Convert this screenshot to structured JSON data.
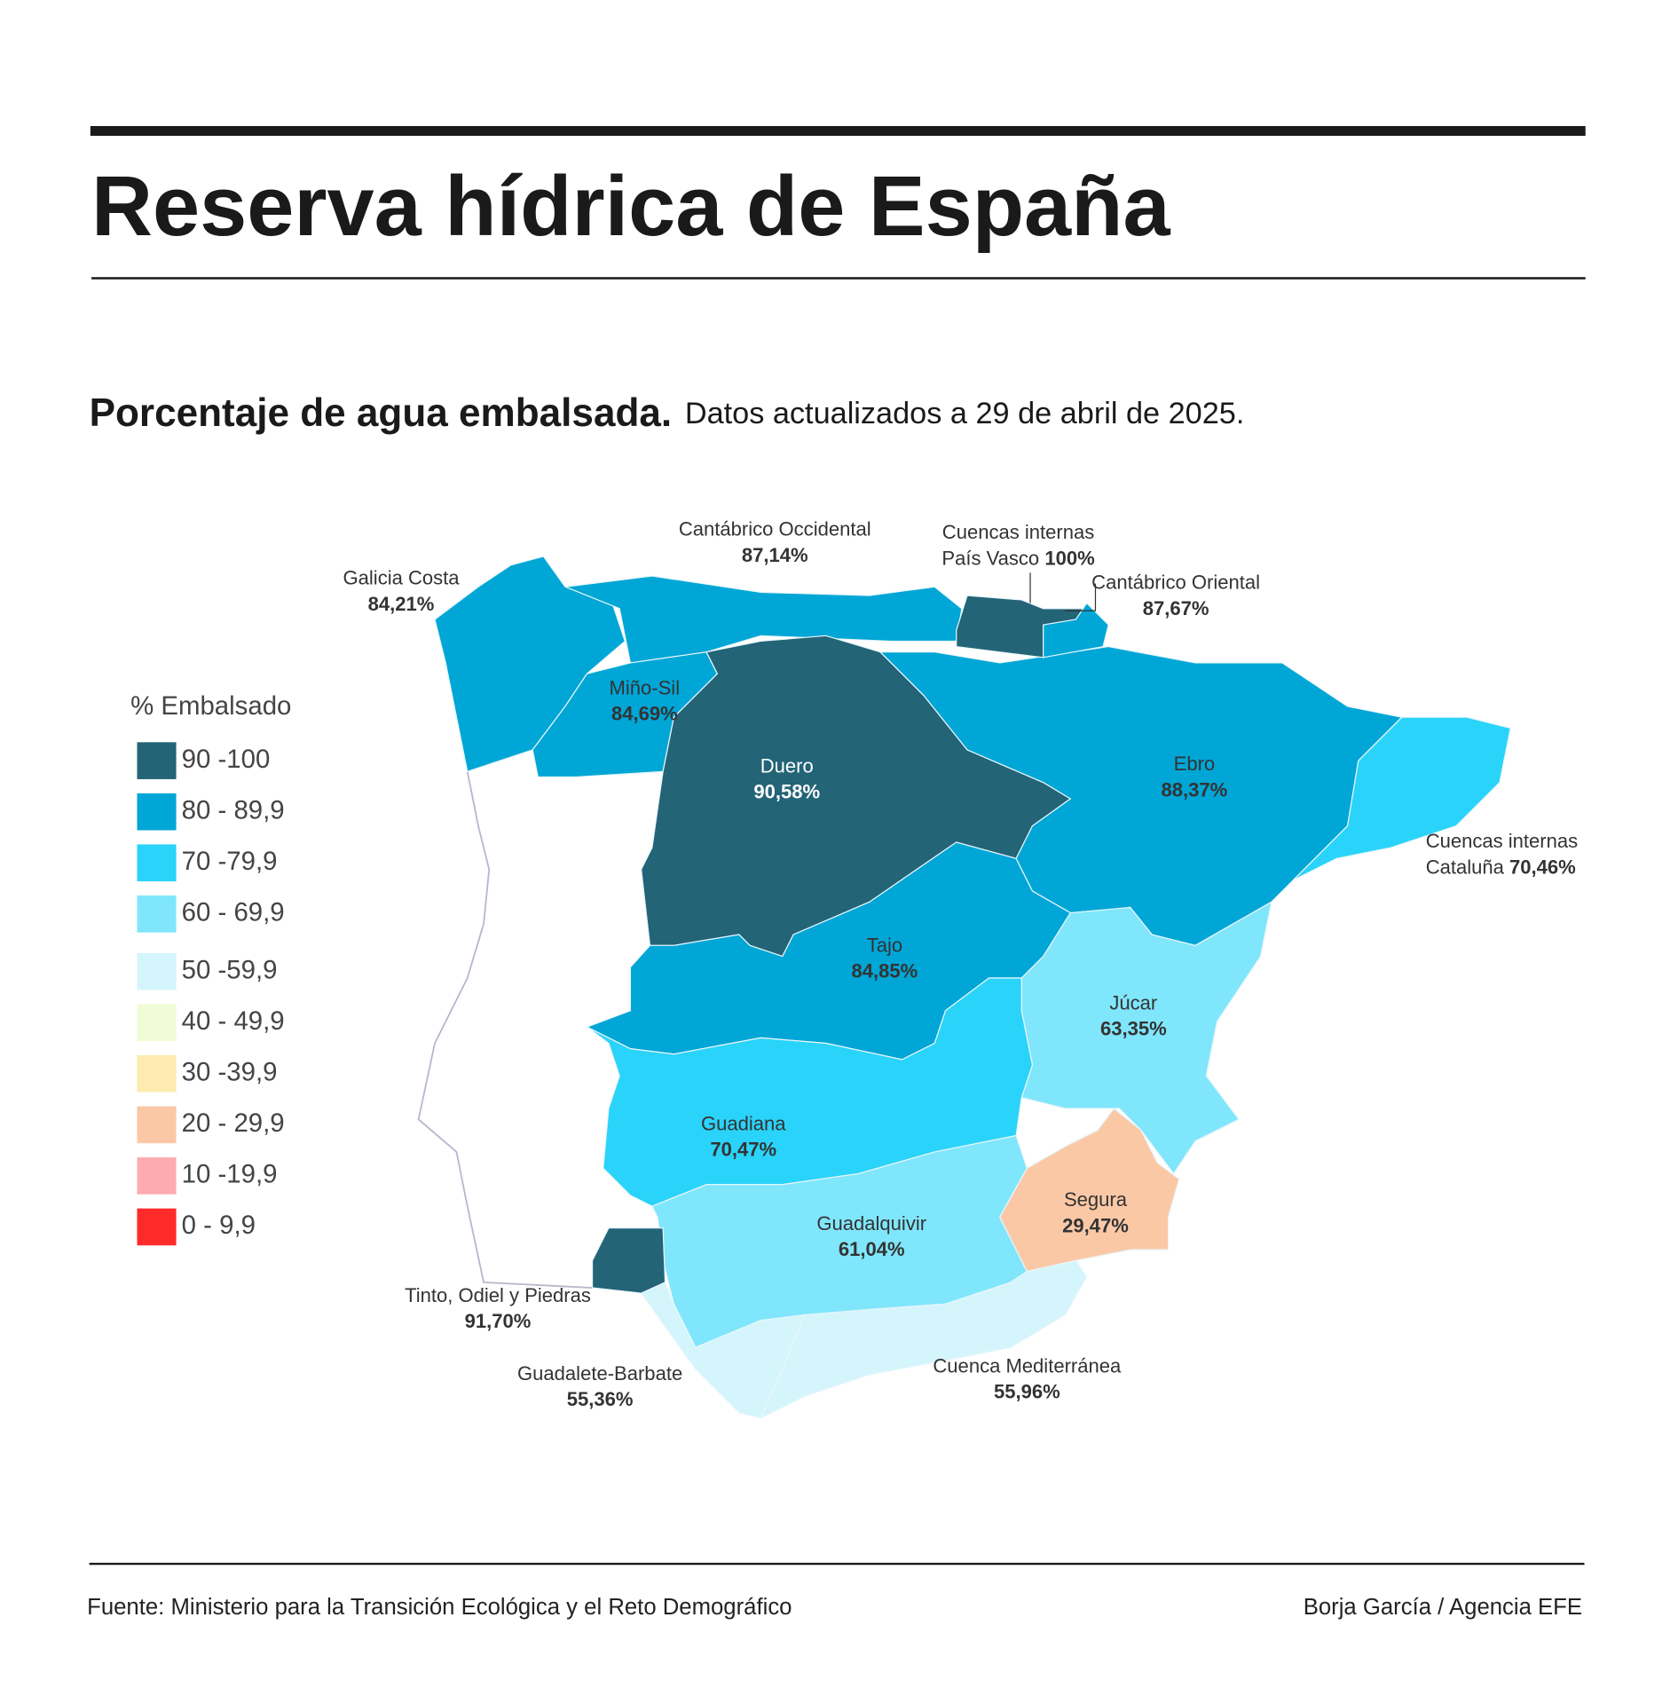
{
  "header": {
    "title": "Reserva hídrica de España",
    "subtitle_bold": "Porcentaje de agua embalsada.",
    "subtitle": "Datos actualizados a 29 de abril de 2025."
  },
  "legend": {
    "title": "% Embalsado",
    "items": [
      {
        "label": "90 -100",
        "color": "#236477"
      },
      {
        "label": "80 - 89,9",
        "color": "#00a6d6"
      },
      {
        "label": "70 -79,9",
        "color": "#2ad3f9"
      },
      {
        "label": "60 - 69,9",
        "color": "#80e6fb"
      },
      {
        "label": "50 -59,9",
        "color": "#d4f5fc"
      },
      {
        "label": "40 - 49,9",
        "color": "#f1fcd6"
      },
      {
        "label": "30 -39,9",
        "color": "#fdebb0"
      },
      {
        "label": "20 - 29,9",
        "color": "#fbc8a6"
      },
      {
        "label": "10 -19,9",
        "color": "#fdabb0"
      },
      {
        "label": "0 - 9,9",
        "color": "#ff2b2b"
      }
    ]
  },
  "regions": [
    {
      "name_lines": [
        "Galicia Costa"
      ],
      "value": "84,21%",
      "color": "#00a6d6"
    },
    {
      "name_lines": [
        "Cantábrico Occidental"
      ],
      "value": "87,14%",
      "color": "#00a6d6"
    },
    {
      "name_lines": [
        "Miño-Sil"
      ],
      "value": "84,69%",
      "color": "#00a6d6"
    },
    {
      "name_lines": [
        "Duero"
      ],
      "value": "90,58%",
      "color": "#236477"
    },
    {
      "name_lines": [
        "Ebro"
      ],
      "value": "88,37%",
      "color": "#00a6d6"
    },
    {
      "name_lines": [
        "Cuencas internas",
        "País Vasco"
      ],
      "value": "100%",
      "color": "#236477"
    },
    {
      "name_lines": [
        "Cantábrico Oriental"
      ],
      "value": "87,67%",
      "color": "#00a6d6"
    },
    {
      "name_lines": [
        "Cuencas internas",
        "Cataluña"
      ],
      "value": "70,46%",
      "color": "#2ad3f9"
    },
    {
      "name_lines": [
        "Tajo"
      ],
      "value": "84,85%",
      "color": "#00a6d6"
    },
    {
      "name_lines": [
        "Júcar"
      ],
      "value": "63,35%",
      "color": "#80e6fb"
    },
    {
      "name_lines": [
        "Guadiana"
      ],
      "value": "70,47%",
      "color": "#2ad3f9"
    },
    {
      "name_lines": [
        "Guadalquivir"
      ],
      "value": "61,04%",
      "color": "#80e6fb"
    },
    {
      "name_lines": [
        "Tinto, Odiel y Piedras"
      ],
      "value": "91,70%",
      "color": "#236477"
    },
    {
      "name_lines": [
        "Segura"
      ],
      "value": "29,47%",
      "color": "#fbc8a6"
    },
    {
      "name_lines": [
        "Guadalete-Barbate"
      ],
      "value": "55,36%",
      "color": "#d4f5fc"
    },
    {
      "name_lines": [
        "Cuenca Mediterránea"
      ],
      "value": "55,96%",
      "color": "#d4f5fc"
    }
  ],
  "footer": {
    "source": "Fuente: Ministerio para la Transición Ecológica y el Reto Demográfico",
    "credit": "Borja García / Agencia EFE"
  }
}
